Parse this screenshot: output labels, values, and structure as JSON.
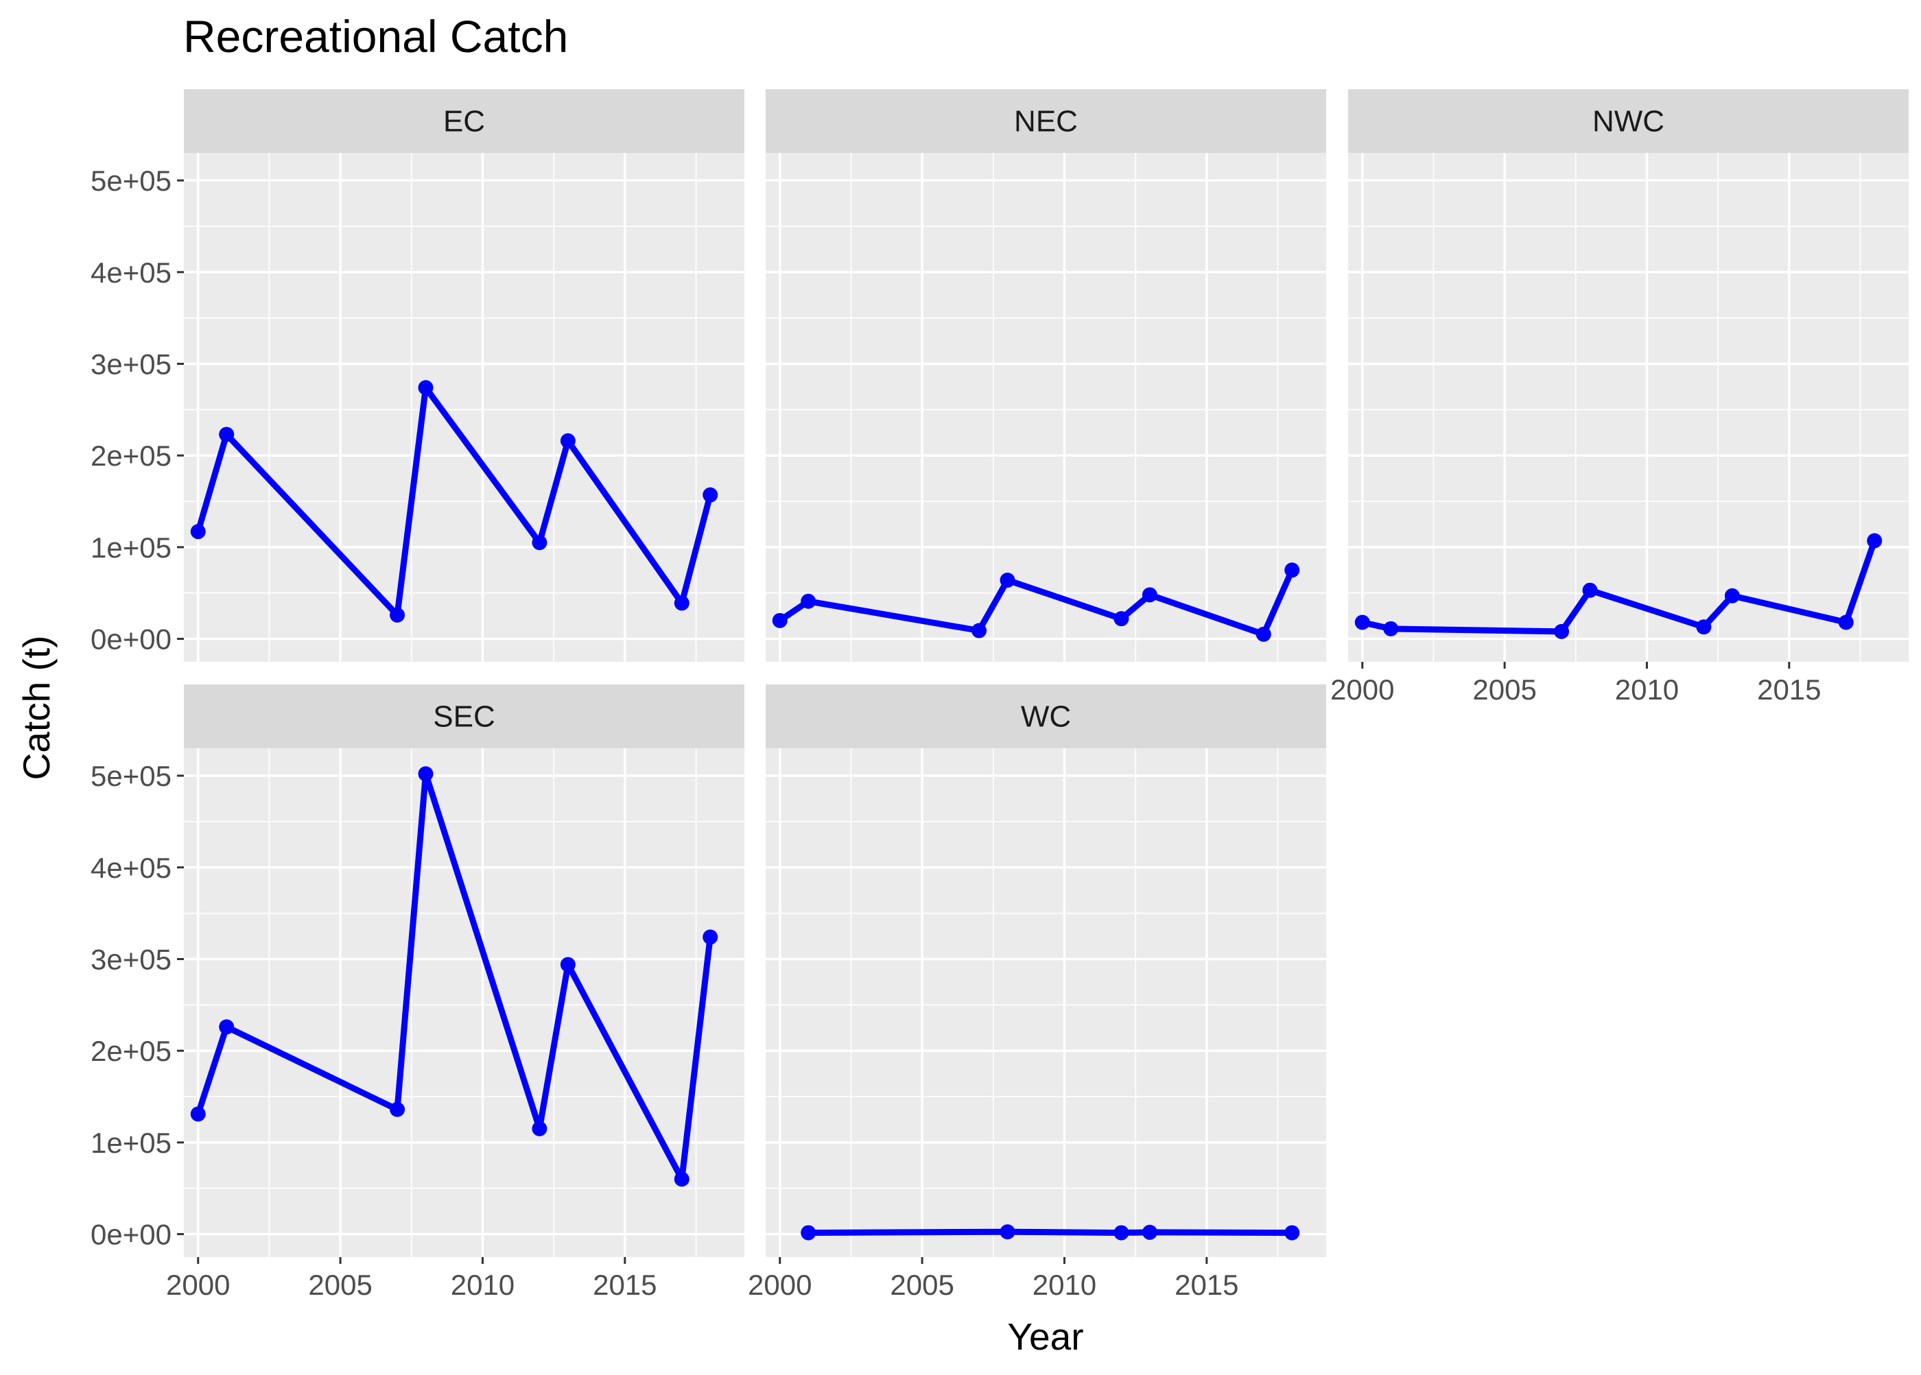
{
  "chart_data": {
    "type": "line",
    "title": "Recreational Catch",
    "xlabel": "Year",
    "ylabel": "Catch (t)",
    "xlim": [
      1999.5,
      2019.2
    ],
    "ylim": [
      -25000,
      530000
    ],
    "x_ticks": [
      2000,
      2005,
      2010,
      2015
    ],
    "x_tick_labels": [
      "2000",
      "2005",
      "2010",
      "2015"
    ],
    "y_ticks": [
      0,
      100000,
      200000,
      300000,
      400000,
      500000
    ],
    "y_tick_labels": [
      "0e+00",
      "1e+05",
      "2e+05",
      "3e+05",
      "4e+05",
      "5e+05"
    ],
    "grid": true,
    "line_color": "#0000ff",
    "panel_background": "#ebebeb",
    "strip_background": "#d9d9d9",
    "facets": [
      {
        "name": "EC",
        "x": [
          2000,
          2001,
          2007,
          2008,
          2012,
          2013,
          2017,
          2018
        ],
        "y": [
          117000,
          223000,
          26000,
          274000,
          105000,
          216000,
          39000,
          157000
        ]
      },
      {
        "name": "NEC",
        "x": [
          2000,
          2001,
          2007,
          2008,
          2012,
          2013,
          2017,
          2018
        ],
        "y": [
          20000,
          41000,
          9000,
          64000,
          22000,
          48000,
          5000,
          75000
        ]
      },
      {
        "name": "NWC",
        "x": [
          2000,
          2001,
          2007,
          2008,
          2012,
          2013,
          2017,
          2018
        ],
        "y": [
          18000,
          11000,
          8000,
          53000,
          13000,
          47000,
          18000,
          107000
        ]
      },
      {
        "name": "SEC",
        "x": [
          2000,
          2001,
          2007,
          2008,
          2012,
          2013,
          2017,
          2018
        ],
        "y": [
          131000,
          226000,
          136000,
          502000,
          115000,
          294000,
          60000,
          324000
        ]
      },
      {
        "name": "WC",
        "x": [
          2001,
          2008,
          2012,
          2013,
          2018
        ],
        "y": [
          1500,
          2500,
          1500,
          2000,
          1500
        ]
      }
    ]
  }
}
